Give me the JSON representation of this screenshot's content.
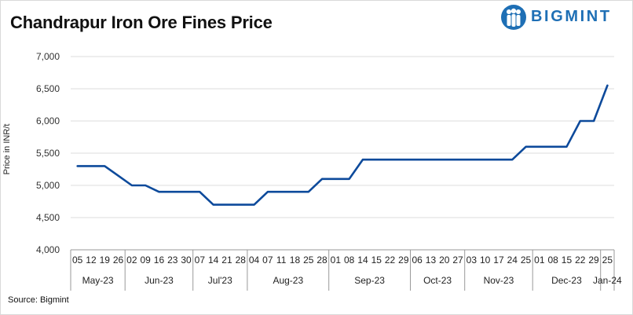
{
  "title": "Chandrapur Iron Ore Fines Price",
  "source": "Source: Bigmint",
  "logo": {
    "text": "BIGMINT",
    "color": "#1e6fb5",
    "icon": "people-figure-icon"
  },
  "colors": {
    "line": "#0d4a9b",
    "grid": "#dcdcdc",
    "axis": "#9a9a9a"
  },
  "chart_data": {
    "type": "line",
    "title": "Chandrapur Iron Ore Fines Price",
    "ylabel": "Price in INR/t",
    "ylim": [
      4000,
      7000
    ],
    "yticks": [
      "4,000",
      "4,500",
      "5,000",
      "5,500",
      "6,000",
      "6,500",
      "7,000"
    ],
    "ytick_values": [
      4000,
      4500,
      5000,
      5500,
      6000,
      6500,
      7000
    ],
    "grid": true,
    "x": [
      "05",
      "12",
      "19",
      "26",
      "02",
      "09",
      "16",
      "23",
      "30",
      "07",
      "14",
      "21",
      "28",
      "04",
      "07",
      "11",
      "18",
      "25",
      "28",
      "01",
      "08",
      "14",
      "15",
      "22",
      "29",
      "06",
      "13",
      "20",
      "27",
      "03",
      "10",
      "17",
      "24",
      "25",
      "01",
      "08",
      "15",
      "22",
      "29",
      "25"
    ],
    "months": [
      {
        "label": "May-23",
        "count": 4
      },
      {
        "label": "Jun-23",
        "count": 5
      },
      {
        "label": "Jul'23",
        "count": 4
      },
      {
        "label": "Aug-23",
        "count": 6
      },
      {
        "label": "Sep-23",
        "count": 6
      },
      {
        "label": "Oct-23",
        "count": 4
      },
      {
        "label": "Nov-23",
        "count": 5
      },
      {
        "label": "Dec-23",
        "count": 5
      },
      {
        "label": "Jan-24",
        "count": 1
      }
    ],
    "series": [
      {
        "values": [
          5300,
          5300,
          5300,
          5150,
          5000,
          5000,
          4900,
          4900,
          4900,
          4900,
          4700,
          4700,
          4700,
          4700,
          4900,
          4900,
          4900,
          4900,
          5100,
          5100,
          5100,
          5400,
          5400,
          5400,
          5400,
          5400,
          5400,
          5400,
          5400,
          5400,
          5400,
          5400,
          5400,
          5600,
          5600,
          5600,
          5600,
          6000,
          6000,
          6550
        ]
      }
    ]
  }
}
